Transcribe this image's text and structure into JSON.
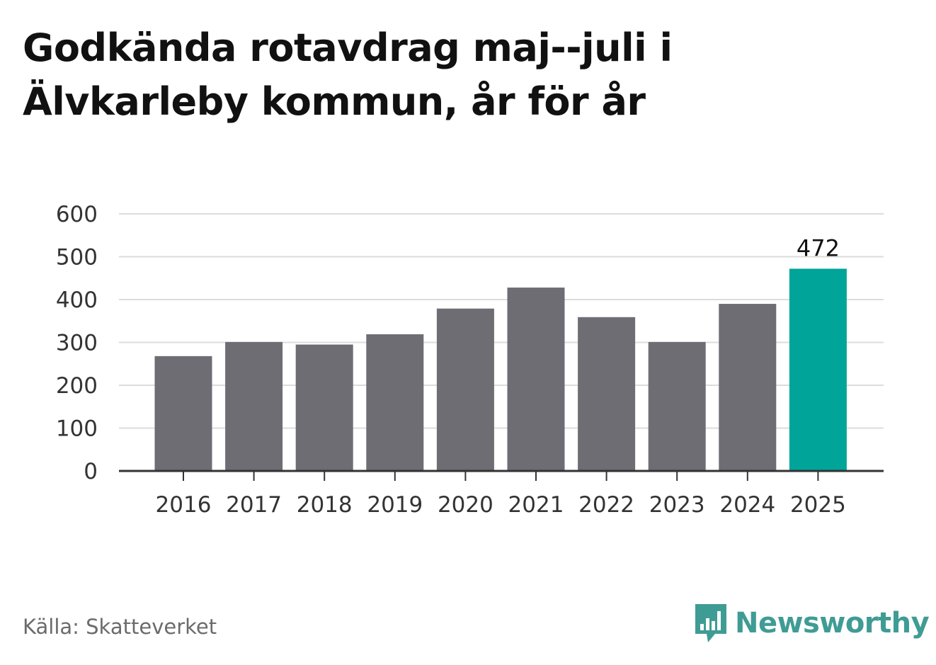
{
  "title": "Godkända rotavdrag maj--juli i Älvkarleby kommun, år för år",
  "source": "Källa: Skatteverket",
  "brand": {
    "name": "Newsworthy",
    "icon": "newsworthy-logo-icon",
    "color": "#3f9c94"
  },
  "chart_data": {
    "type": "bar",
    "categories": [
      "2016",
      "2017",
      "2018",
      "2019",
      "2020",
      "2021",
      "2022",
      "2023",
      "2024",
      "2025"
    ],
    "values": [
      268,
      301,
      295,
      319,
      379,
      428,
      359,
      301,
      390,
      472
    ],
    "highlight_index": 9,
    "highlight_label": "472",
    "ylim": [
      0,
      600
    ],
    "yticks": [
      0,
      100,
      200,
      300,
      400,
      500,
      600
    ],
    "grid": true,
    "bar_color": "#6e6d73",
    "highlight_color": "#00a499"
  }
}
